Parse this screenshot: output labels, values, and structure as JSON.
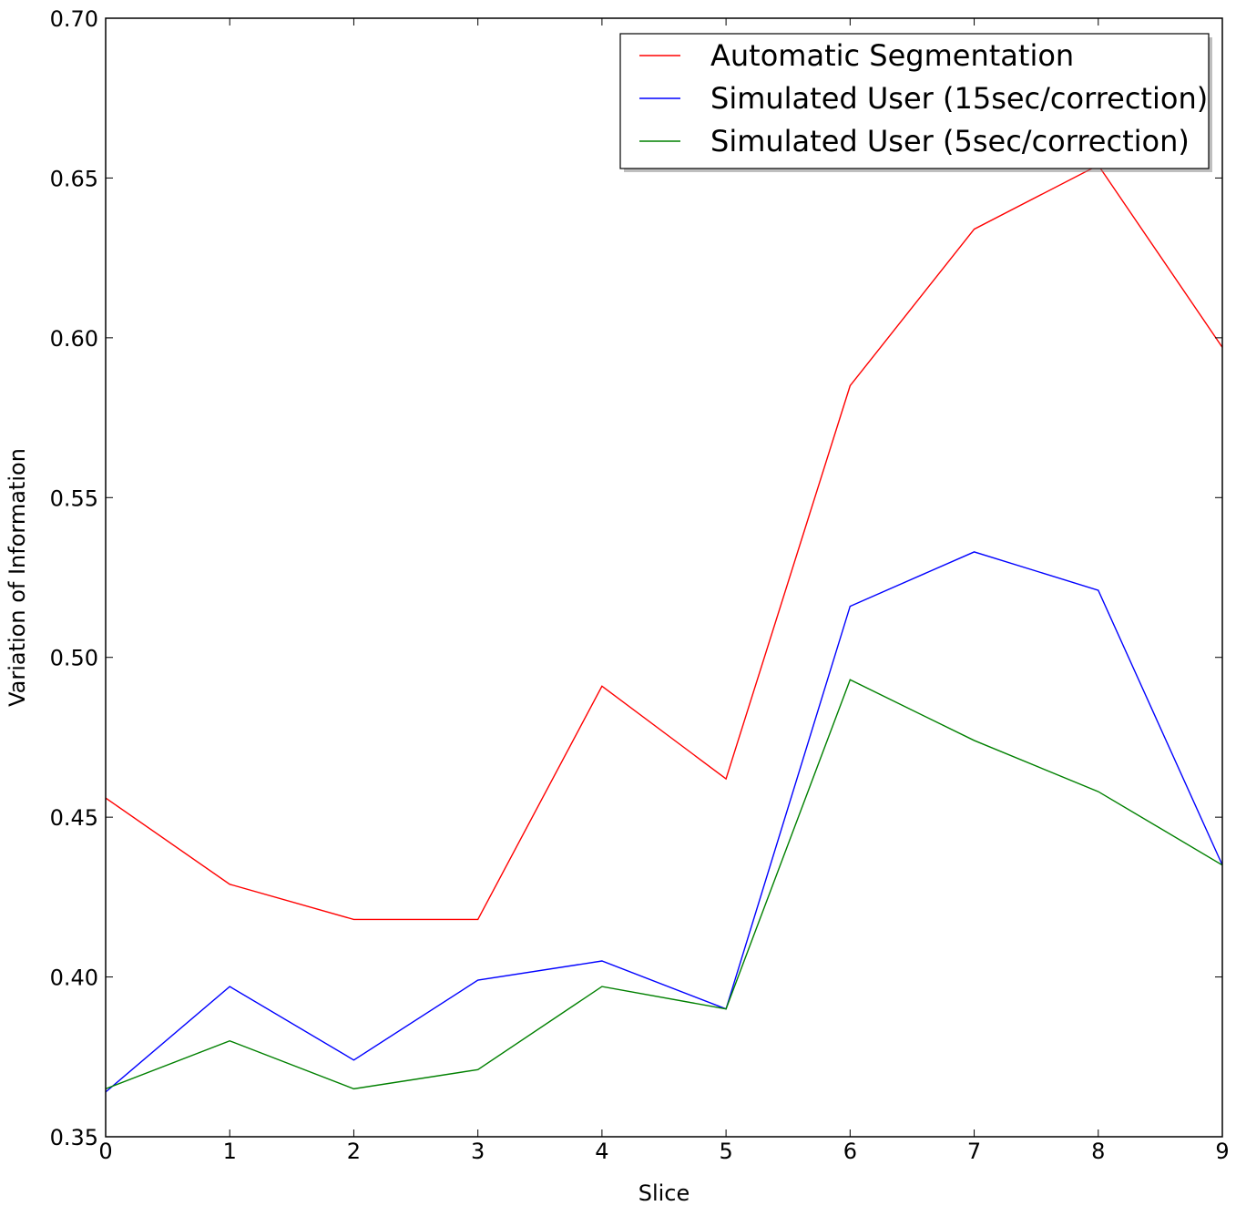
{
  "chart_data": {
    "type": "line",
    "title": "",
    "xlabel": "Slice",
    "ylabel": "Variation of Information",
    "xlim": [
      0,
      9
    ],
    "ylim": [
      0.35,
      0.7
    ],
    "x": [
      0,
      1,
      2,
      3,
      4,
      5,
      6,
      7,
      8,
      9
    ],
    "xticks": [
      "0",
      "1",
      "2",
      "3",
      "4",
      "5",
      "6",
      "7",
      "8",
      "9"
    ],
    "yticks": [
      "0.35",
      "0.40",
      "0.45",
      "0.50",
      "0.55",
      "0.60",
      "0.65",
      "0.70"
    ],
    "ytick_values": [
      0.35,
      0.4,
      0.45,
      0.5,
      0.55,
      0.6,
      0.65,
      0.7
    ],
    "grid": false,
    "legend_position": "top-right",
    "series": [
      {
        "name": "Automatic Segmentation",
        "color": "#ff0000",
        "values": [
          0.456,
          0.429,
          0.418,
          0.418,
          0.491,
          0.462,
          0.585,
          0.634,
          0.654,
          0.597
        ]
      },
      {
        "name": "Simulated User (15sec/correction)",
        "color": "#0000ff",
        "values": [
          0.364,
          0.397,
          0.374,
          0.399,
          0.405,
          0.39,
          0.516,
          0.533,
          0.521,
          0.435
        ]
      },
      {
        "name": "Simulated User (5sec/correction)",
        "color": "#008000",
        "values": [
          0.365,
          0.38,
          0.365,
          0.371,
          0.397,
          0.39,
          0.493,
          0.474,
          0.458,
          0.435
        ]
      }
    ]
  }
}
